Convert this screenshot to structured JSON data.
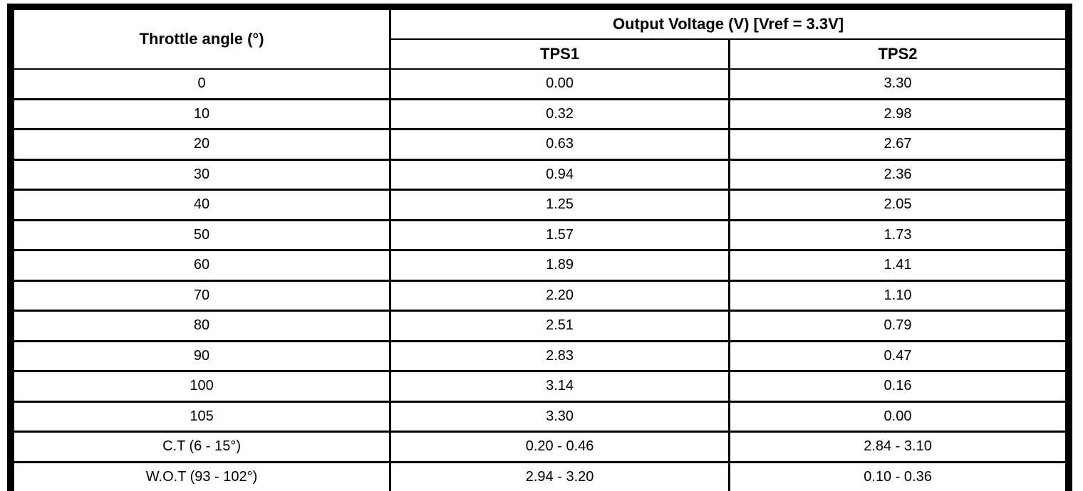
{
  "table": {
    "col1_header": "Throttle angle (°)",
    "output_header": "Output Voltage (V) [Vref = 3.3V]",
    "sub_headers": [
      "TPS1",
      "TPS2"
    ],
    "rows": [
      {
        "angle": "0",
        "tps1": "0.00",
        "tps2": "3.30"
      },
      {
        "angle": "10",
        "tps1": "0.32",
        "tps2": "2.98"
      },
      {
        "angle": "20",
        "tps1": "0.63",
        "tps2": "2.67"
      },
      {
        "angle": "30",
        "tps1": "0.94",
        "tps2": "2.36"
      },
      {
        "angle": "40",
        "tps1": "1.25",
        "tps2": "2.05"
      },
      {
        "angle": "50",
        "tps1": "1.57",
        "tps2": "1.73"
      },
      {
        "angle": "60",
        "tps1": "1.89",
        "tps2": "1.41"
      },
      {
        "angle": "70",
        "tps1": "2.20",
        "tps2": "1.10"
      },
      {
        "angle": "80",
        "tps1": "2.51",
        "tps2": "0.79"
      },
      {
        "angle": "90",
        "tps1": "2.83",
        "tps2": "0.47"
      },
      {
        "angle": "100",
        "tps1": "3.14",
        "tps2": "0.16"
      },
      {
        "angle": "105",
        "tps1": "3.30",
        "tps2": "0.00"
      },
      {
        "angle": "C.T (6 - 15°)",
        "tps1": "0.20 - 0.46",
        "tps2": "2.84 - 3.10"
      },
      {
        "angle": "W.O.T (93 - 102°)",
        "tps1": "2.94 - 3.20",
        "tps2": "0.10 - 0.36"
      }
    ],
    "colors": {
      "border": "#000000",
      "background": "#ffffff",
      "text": "#000000"
    }
  },
  "chart_data": {
    "type": "table",
    "title": "Output Voltage (V) [Vref = 3.3V]",
    "columns": [
      "Throttle angle (°)",
      "TPS1",
      "TPS2"
    ],
    "rows": [
      [
        "0",
        "0.00",
        "3.30"
      ],
      [
        "10",
        "0.32",
        "2.98"
      ],
      [
        "20",
        "0.63",
        "2.67"
      ],
      [
        "30",
        "0.94",
        "2.36"
      ],
      [
        "40",
        "1.25",
        "2.05"
      ],
      [
        "50",
        "1.57",
        "1.73"
      ],
      [
        "60",
        "1.89",
        "1.41"
      ],
      [
        "70",
        "2.20",
        "1.10"
      ],
      [
        "80",
        "2.51",
        "0.79"
      ],
      [
        "90",
        "2.83",
        "0.47"
      ],
      [
        "100",
        "3.14",
        "0.16"
      ],
      [
        "105",
        "3.30",
        "0.00"
      ],
      [
        "C.T (6 - 15°)",
        "0.20 - 0.46",
        "2.84 - 3.10"
      ],
      [
        "W.O.T (93 - 102°)",
        "2.94 - 3.20",
        "0.10 - 0.36"
      ]
    ]
  }
}
